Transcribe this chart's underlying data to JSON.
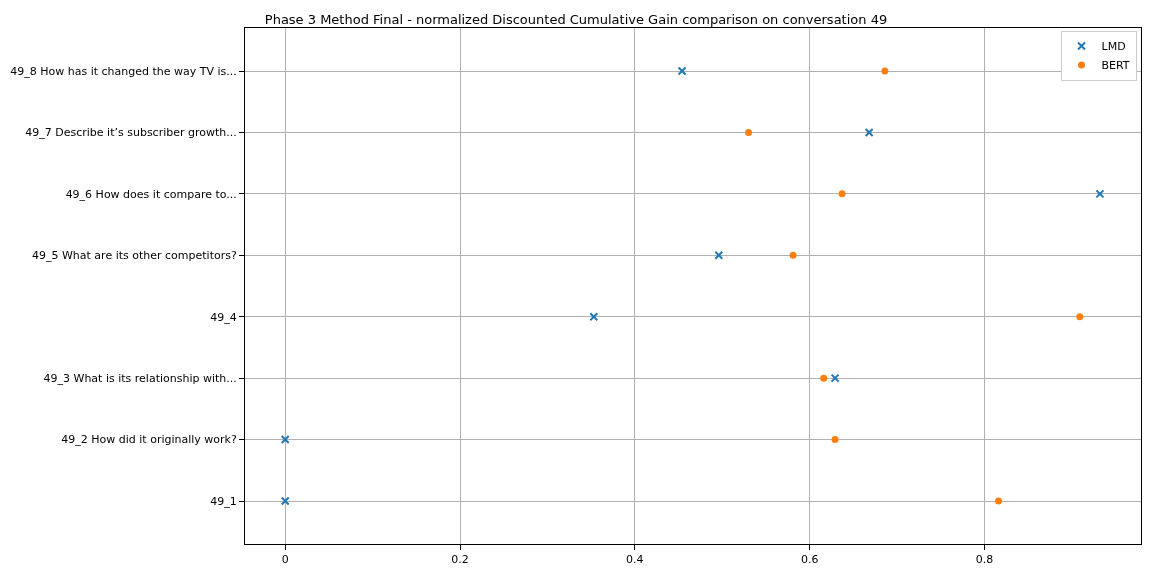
{
  "chart_data": {
    "type": "scatter",
    "orientation": "horizontal",
    "title": "Phase 3 Method Final - normalized Discounted Cumulative Gain comparison on conversation 49",
    "categories": [
      "49_8 How has it changed the way TV is...",
      "49_7 Describe it’s subscriber growth...",
      "49_6 How does it compare to...",
      "49_5 What are its other competitors?",
      "49_4",
      "49_3 What is its relationship with...",
      "49_2 How did it originally work?",
      "49_1"
    ],
    "series": [
      {
        "name": "LMD",
        "color": "#1f77b4",
        "marker": "cross",
        "values": [
          0.454,
          0.668,
          0.932,
          0.496,
          0.353,
          0.629,
          0,
          0
        ]
      },
      {
        "name": "BERT",
        "color": "#ff7f0e",
        "marker": "circle",
        "values": [
          0.686,
          0.53,
          0.637,
          0.581,
          0.909,
          0.616,
          0.629,
          0.816
        ]
      }
    ],
    "xlim": [
      -0.046,
      0.979
    ],
    "xticks": [
      0,
      0.2,
      0.4,
      0.6,
      0.8
    ],
    "grid": true,
    "legend": "top right"
  }
}
